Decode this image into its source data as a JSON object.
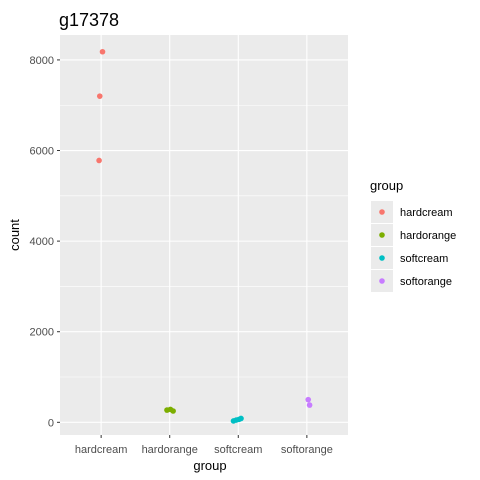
{
  "colors": {
    "panel": "#ebebeb",
    "grid_major": "#ffffff",
    "tick": "#333333",
    "hardcream": "#f8766d",
    "hardorange": "#7cae00",
    "softcream": "#00bfc4",
    "softorange": "#c77cff"
  },
  "chart_data": {
    "type": "scatter",
    "title": "g17378",
    "xlabel": "group",
    "ylabel": "count",
    "categories": [
      "hardcream",
      "hardorange",
      "softcream",
      "softorange"
    ],
    "ylim": [
      -280,
      8550
    ],
    "y_ticks": [
      0,
      2000,
      4000,
      6000,
      8000
    ],
    "y_tick_labels": [
      "0",
      "2000",
      "4000",
      "6000",
      "8000"
    ],
    "grid": true,
    "legend": {
      "title": "group",
      "position": "right",
      "entries": [
        "hardcream",
        "hardorange",
        "softcream",
        "softorange"
      ]
    },
    "series": [
      {
        "name": "hardcream",
        "points": [
          {
            "x": 1.02,
            "y": 8180
          },
          {
            "x": 0.98,
            "y": 7200
          },
          {
            "x": 0.97,
            "y": 5780
          }
        ]
      },
      {
        "name": "hardorange",
        "points": [
          {
            "x": 1.96,
            "y": 270
          },
          {
            "x": 2.01,
            "y": 285
          },
          {
            "x": 2.05,
            "y": 250
          }
        ]
      },
      {
        "name": "softcream",
        "points": [
          {
            "x": 2.93,
            "y": 30
          },
          {
            "x": 2.97,
            "y": 50
          },
          {
            "x": 3.01,
            "y": 65
          },
          {
            "x": 3.04,
            "y": 85
          }
        ]
      },
      {
        "name": "softorange",
        "points": [
          {
            "x": 4.02,
            "y": 500
          },
          {
            "x": 4.04,
            "y": 380
          }
        ]
      }
    ]
  }
}
